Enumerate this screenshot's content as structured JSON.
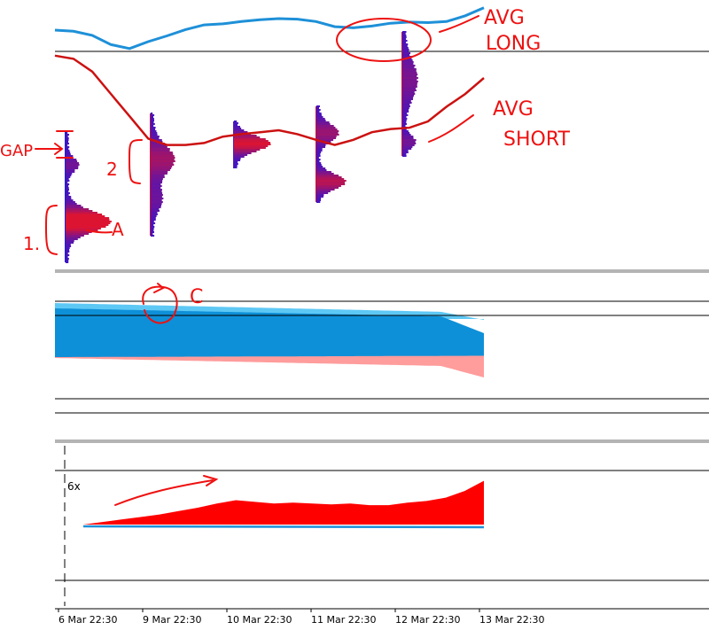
{
  "chart_data": [
    {
      "panel": "price",
      "type": "line",
      "x_ticks": [
        "6 Mar 22:30",
        "9 Mar 22:30",
        "10 Mar 22:30",
        "11 Mar 22:30",
        "12 Mar 22:30",
        "13 Mar 22:30"
      ],
      "series": [
        {
          "name": "AVG LONG",
          "color": "#1e90d8",
          "values": [
            0.0,
            -0.2,
            -0.9,
            -2.5,
            -3.2,
            -2.0,
            -1.0,
            0.1,
            0.9,
            1.1,
            1.5,
            1.8,
            2.0,
            1.9,
            1.5,
            0.6,
            0.4,
            0.7,
            1.2,
            1.4,
            1.3,
            1.5,
            2.5,
            3.9
          ]
        },
        {
          "name": "AVG SHORT",
          "color": "#cc1111",
          "values": [
            18.5,
            18.0,
            16.0,
            12.5,
            9.0,
            5.5,
            4.5,
            4.5,
            4.8,
            5.8,
            6.2,
            6.5,
            6.8,
            6.2,
            5.3,
            4.5,
            5.3,
            6.5,
            7.0,
            7.2,
            8.2,
            10.5,
            12.5,
            15.0
          ]
        }
      ],
      "profiles": [
        {
          "label_color": "#2222cc",
          "peak": "#3a1ec8"
        },
        {
          "label_color": "#cc1133",
          "peak": "#cc1133"
        },
        {
          "label_color": "#5520b0",
          "peak": "#cc1133"
        },
        {
          "label_color": "#cc1133",
          "peak": "#cc1133"
        },
        {
          "label_color": "#cc1133",
          "peak": "#cc1133"
        }
      ],
      "annotations": [
        "AVG LONG",
        "AVG SHORT",
        "GAP",
        "2",
        "1.",
        "A"
      ]
    },
    {
      "panel": "bands",
      "type": "area",
      "colors": {
        "light_blue": "#5ec8f5",
        "blue": "#0e90d8",
        "pink": "#ff9c9c"
      },
      "annotations": [
        "C"
      ]
    },
    {
      "panel": "ratio",
      "type": "area",
      "level_label": "6x",
      "colors": {
        "area": "#ff0000",
        "baseline": "#1e90d8"
      },
      "values": [
        0.0,
        0.3,
        0.6,
        0.9,
        1.2,
        1.6,
        2.0,
        2.5,
        2.9,
        2.7,
        2.5,
        2.6,
        2.5,
        2.4,
        2.5,
        2.3,
        2.3,
        2.6,
        2.8,
        3.2,
        4.0,
        5.2
      ]
    }
  ]
}
